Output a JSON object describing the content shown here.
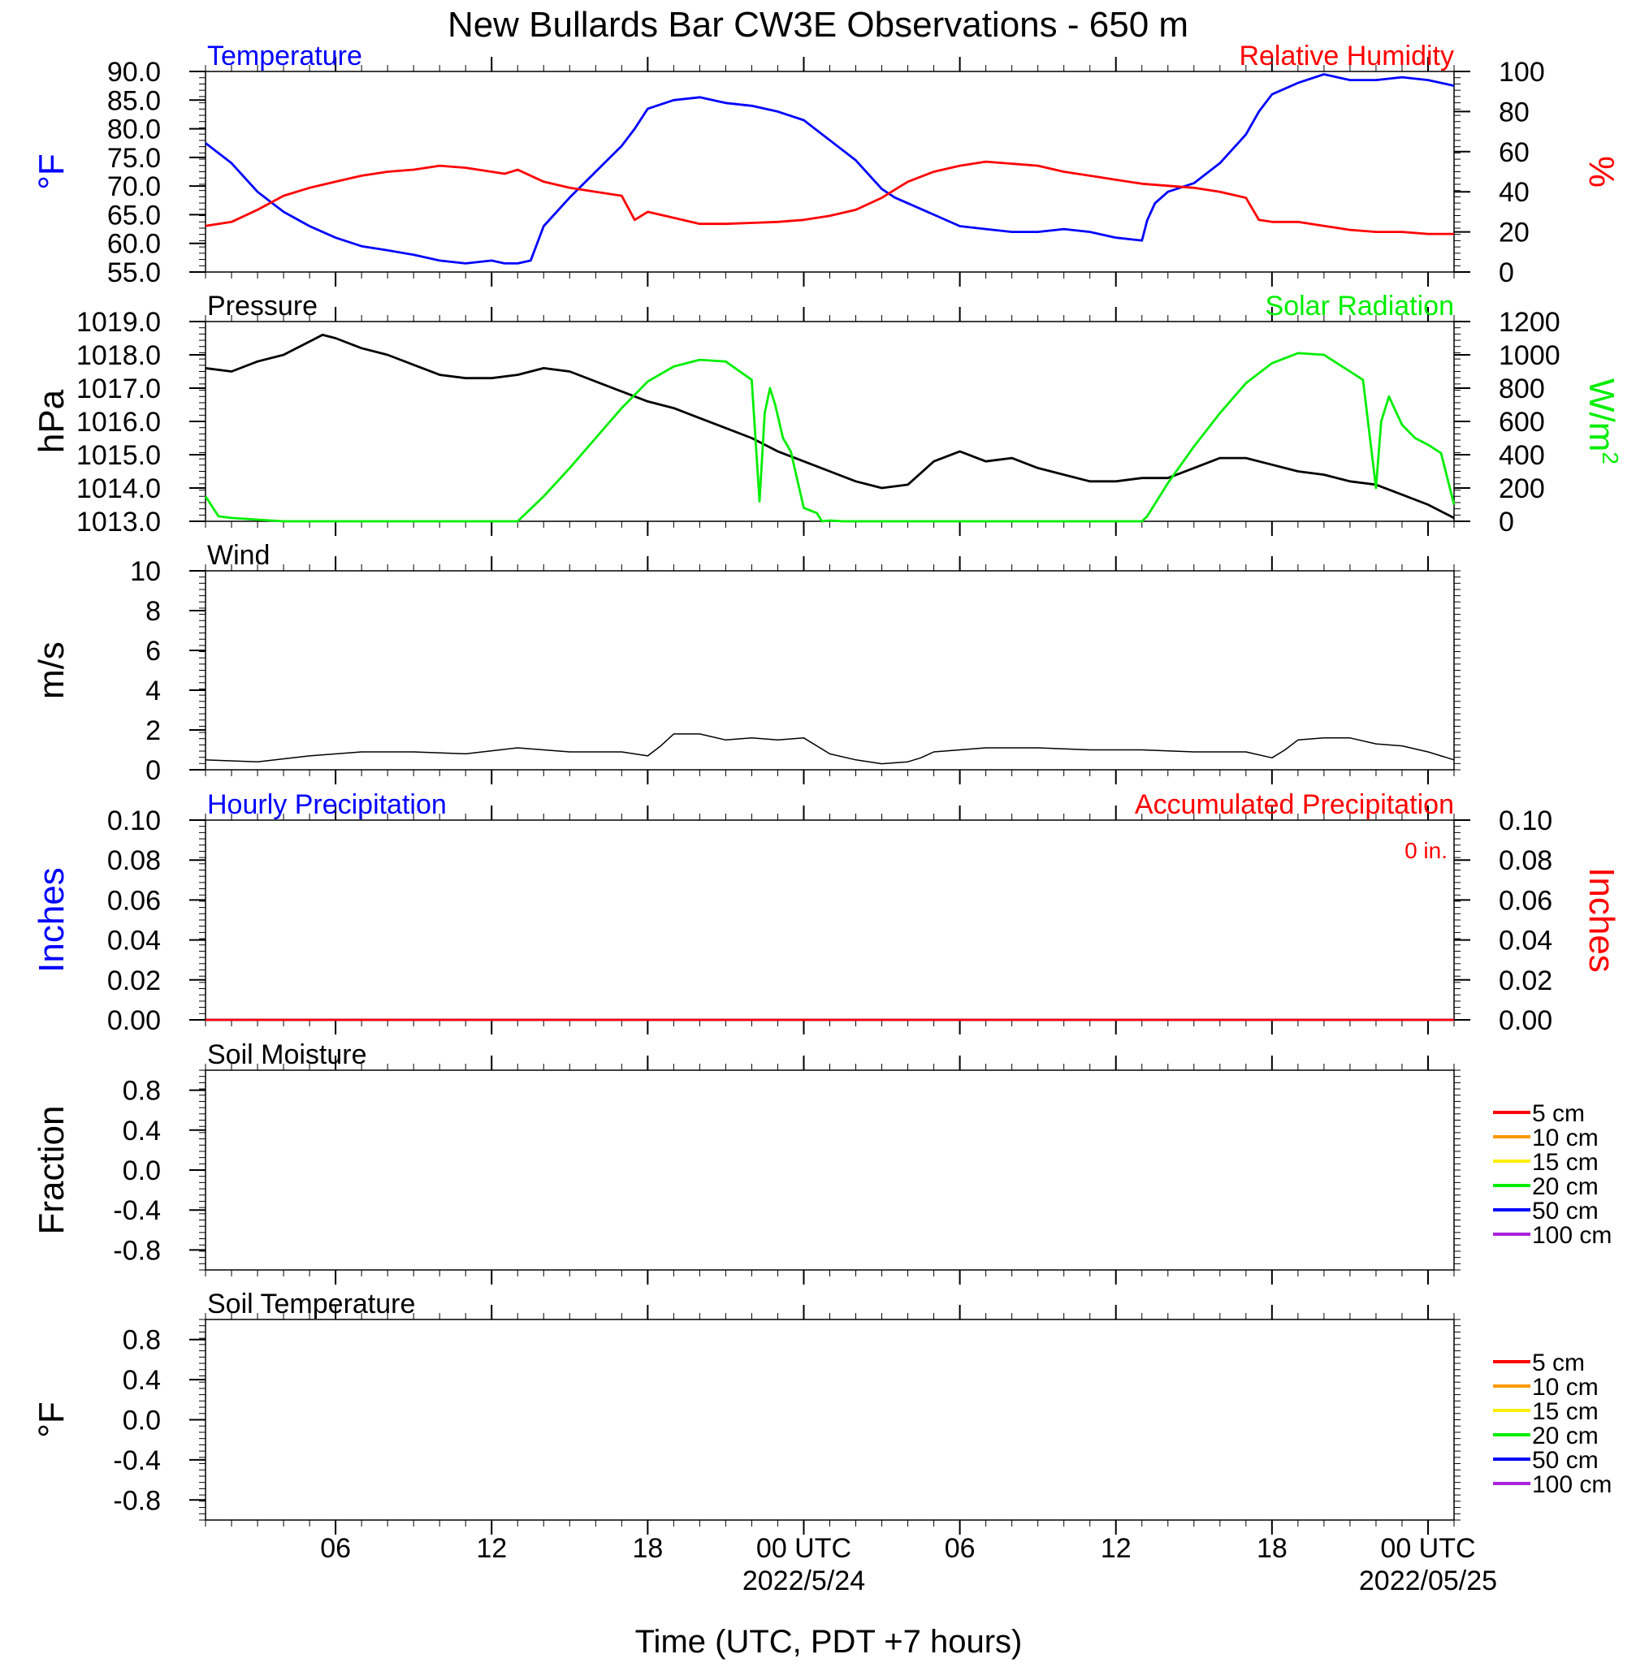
{
  "title": "New Bullards Bar CW3E Observations - 650 m",
  "xlabel": "Time (UTC, PDT +7 hours)",
  "x_axis": {
    "range_hours": [
      0,
      48
    ],
    "ticks": [
      {
        "hour": 5,
        "label": "06",
        "sub": ""
      },
      {
        "hour": 11,
        "label": "12",
        "sub": ""
      },
      {
        "hour": 17,
        "label": "18",
        "sub": ""
      },
      {
        "hour": 23,
        "label": "00 UTC",
        "sub": "2022/5/24"
      },
      {
        "hour": 29,
        "label": "06",
        "sub": ""
      },
      {
        "hour": 35,
        "label": "12",
        "sub": ""
      },
      {
        "hour": 41,
        "label": "18",
        "sub": ""
      },
      {
        "hour": 47,
        "label": "00 UTC",
        "sub": "2022/05/25"
      }
    ]
  },
  "colors": {
    "blue": "#0000ff",
    "red": "#ff0000",
    "green": "#00ee00",
    "black": "#000000",
    "orange": "#ff9900",
    "yellow": "#ffee00",
    "purple": "#aa22dd"
  },
  "chart_data": [
    {
      "type": "line",
      "panel": "temperature-humidity",
      "title_left": "Temperature",
      "title_right": "Relative Humidity",
      "ylabel_left": "°F",
      "ylabel_right": "%",
      "ylim_left": [
        55,
        90
      ],
      "ylim_right": [
        0,
        100
      ],
      "yticks_left": [
        "55.0",
        "60.0",
        "65.0",
        "70.0",
        "75.0",
        "80.0",
        "85.0",
        "90.0"
      ],
      "yticks_right": [
        "0",
        "20",
        "40",
        "60",
        "80",
        "100"
      ],
      "series": [
        {
          "name": "Temperature",
          "axis": "left",
          "color": "blue",
          "x": [
            0,
            1,
            2,
            3,
            4,
            5,
            6,
            7,
            8,
            9,
            10,
            11,
            11.5,
            12,
            12.5,
            13,
            14,
            15,
            16,
            16.5,
            17,
            18,
            19,
            20,
            21,
            22,
            23,
            24,
            25,
            26,
            26.5,
            27,
            28,
            29,
            30,
            31,
            32,
            33,
            34,
            35,
            36,
            36.2,
            36.5,
            37,
            38,
            39,
            40,
            40.5,
            41,
            42,
            43,
            44,
            45,
            46,
            47,
            48
          ],
          "y": [
            77.5,
            74,
            69,
            65.5,
            63,
            61,
            59.5,
            58.8,
            58,
            57,
            56.5,
            57,
            56.5,
            56.5,
            57,
            63,
            68,
            72.5,
            77,
            80,
            83.5,
            85,
            85.5,
            84.5,
            84,
            83,
            81.5,
            78,
            74.5,
            69.5,
            68,
            67,
            65,
            63,
            62.5,
            62,
            62,
            62.5,
            62,
            61,
            60.5,
            64,
            67,
            69,
            70.5,
            74,
            79,
            83,
            86,
            88,
            89.5,
            88.5,
            88.5,
            89,
            88.5,
            87.5
          ]
        },
        {
          "name": "Relative Humidity",
          "axis": "right",
          "color": "red",
          "x": [
            0,
            1,
            2,
            3,
            4,
            5,
            6,
            7,
            8,
            9,
            10,
            11,
            11.5,
            12,
            13,
            14,
            15,
            16,
            16.5,
            17,
            18,
            19,
            20,
            21,
            22,
            23,
            24,
            25,
            26,
            27,
            28,
            29,
            30,
            31,
            32,
            33,
            34,
            35,
            36,
            37,
            38,
            39,
            40,
            40.5,
            41,
            42,
            43,
            44,
            45,
            46,
            47,
            48
          ],
          "y": [
            23,
            25,
            31,
            38,
            42,
            45,
            48,
            50,
            51,
            53,
            52,
            50,
            49,
            51,
            45,
            42,
            40,
            38,
            26,
            30,
            27,
            24,
            24,
            24.5,
            25,
            26,
            28,
            31,
            37,
            45,
            50,
            53,
            55,
            54,
            53,
            50,
            48,
            46,
            44,
            43,
            42,
            40,
            37,
            26,
            25,
            25,
            23,
            21,
            20,
            20,
            19,
            19
          ]
        }
      ]
    },
    {
      "type": "line",
      "panel": "pressure-solar",
      "title_left": "Pressure",
      "title_right": "Solar Radiation",
      "ylabel_left": "hPa",
      "ylabel_right": "W/m2",
      "ylim_left": [
        1013,
        1019
      ],
      "ylim_right": [
        0,
        1200
      ],
      "yticks_left": [
        "1013.0",
        "1014.0",
        "1015.0",
        "1016.0",
        "1017.0",
        "1018.0",
        "1019.0"
      ],
      "yticks_right": [
        "0",
        "200",
        "400",
        "600",
        "800",
        "1000",
        "1200"
      ],
      "series": [
        {
          "name": "Pressure",
          "axis": "left",
          "color": "black",
          "x": [
            0,
            1,
            2,
            3,
            4,
            4.5,
            5,
            6,
            7,
            8,
            9,
            10,
            11,
            12,
            13,
            14,
            15,
            16,
            17,
            18,
            19,
            20,
            21,
            22,
            23,
            24,
            25,
            26,
            27,
            28,
            29,
            30,
            31,
            32,
            33,
            34,
            35,
            36,
            37,
            38,
            39,
            40,
            41,
            42,
            43,
            44,
            45,
            46,
            47,
            48
          ],
          "y": [
            1017.6,
            1017.5,
            1017.8,
            1018.0,
            1018.4,
            1018.6,
            1018.5,
            1018.2,
            1018.0,
            1017.7,
            1017.4,
            1017.3,
            1017.3,
            1017.4,
            1017.6,
            1017.5,
            1017.2,
            1016.9,
            1016.6,
            1016.4,
            1016.1,
            1015.8,
            1015.5,
            1015.1,
            1014.8,
            1014.5,
            1014.2,
            1014.0,
            1014.1,
            1014.8,
            1015.1,
            1014.8,
            1014.9,
            1014.6,
            1014.4,
            1014.2,
            1014.2,
            1014.3,
            1014.3,
            1014.6,
            1014.9,
            1014.9,
            1014.7,
            1014.5,
            1014.4,
            1014.2,
            1014.1,
            1013.8,
            1013.5,
            1013.1
          ]
        },
        {
          "name": "Solar Radiation",
          "axis": "right",
          "color": "green",
          "x": [
            0,
            0.5,
            1,
            2,
            3,
            4,
            5,
            6,
            7,
            8,
            9,
            10,
            11,
            12,
            12.2,
            13,
            14,
            15,
            16,
            17,
            18,
            19,
            20,
            21,
            21.3,
            21.5,
            21.7,
            21.9,
            22.2,
            22.5,
            23,
            23.5,
            23.7,
            24,
            24.5,
            25,
            26,
            27,
            28,
            29,
            30,
            31,
            32,
            33,
            34,
            35,
            36,
            36.2,
            37,
            38,
            39,
            40,
            41,
            42,
            43,
            44,
            44.5,
            45,
            45.2,
            45.5,
            45.7,
            46,
            46.5,
            47,
            47.5,
            48
          ],
          "y": [
            150,
            30,
            20,
            10,
            0,
            0,
            0,
            0,
            0,
            0,
            0,
            0,
            0,
            0,
            30,
            150,
            320,
            500,
            680,
            840,
            930,
            970,
            960,
            850,
            120,
            650,
            800,
            700,
            500,
            420,
            80,
            50,
            0,
            5,
            0,
            0,
            0,
            0,
            0,
            0,
            0,
            0,
            0,
            0,
            0,
            0,
            0,
            30,
            230,
            450,
            650,
            830,
            950,
            1010,
            1000,
            900,
            850,
            200,
            600,
            750,
            680,
            580,
            500,
            460,
            410,
            100
          ]
        }
      ]
    },
    {
      "type": "line",
      "panel": "wind",
      "title_left": "Wind",
      "ylabel_left": "m/s",
      "ylim_left": [
        0,
        10
      ],
      "yticks_left": [
        "0",
        "2",
        "4",
        "6",
        "8",
        "10"
      ],
      "series": [
        {
          "name": "Wind",
          "axis": "left",
          "color": "black",
          "x": [
            0,
            2,
            4,
            6,
            8,
            10,
            12,
            14,
            16,
            17,
            17.5,
            18,
            19,
            20,
            21,
            22,
            23,
            24,
            25,
            26,
            27,
            27.5,
            28,
            30,
            32,
            34,
            36,
            38,
            40,
            41,
            41.5,
            42,
            43,
            44,
            45,
            46,
            47,
            48
          ],
          "y": [
            0.5,
            0.4,
            0.7,
            0.9,
            0.9,
            0.8,
            1.1,
            0.9,
            0.9,
            0.7,
            1.2,
            1.8,
            1.8,
            1.5,
            1.6,
            1.5,
            1.6,
            0.8,
            0.5,
            0.3,
            0.4,
            0.6,
            0.9,
            1.1,
            1.1,
            1.0,
            1.0,
            0.9,
            0.9,
            0.6,
            1.0,
            1.5,
            1.6,
            1.6,
            1.3,
            1.2,
            0.9,
            0.5
          ]
        }
      ]
    },
    {
      "type": "line",
      "panel": "precipitation",
      "title_left": "Hourly Precipitation",
      "title_right": "Accumulated Precipitation",
      "annotation": "0 in.",
      "ylabel_left": "Inches",
      "ylabel_right": "Inches",
      "ylim_left": [
        0,
        0.1
      ],
      "ylim_right": [
        0,
        0.1
      ],
      "yticks_left": [
        "0.00",
        "0.02",
        "0.04",
        "0.06",
        "0.08",
        "0.10"
      ],
      "yticks_right": [
        "0.00",
        "0.02",
        "0.04",
        "0.06",
        "0.08",
        "0.10"
      ],
      "series": [
        {
          "name": "Hourly Precipitation",
          "axis": "left",
          "color": "blue",
          "x": [
            0,
            48
          ],
          "y": [
            0,
            0
          ]
        },
        {
          "name": "Accumulated Precipitation",
          "axis": "right",
          "color": "red",
          "x": [
            0,
            48
          ],
          "y": [
            0,
            0
          ]
        }
      ]
    },
    {
      "type": "line",
      "panel": "soil-moisture",
      "title_left": "Soil Moisture",
      "ylabel_left": "Fraction",
      "ylim_left": [
        -1,
        1
      ],
      "yticks_left": [
        "-0.8",
        "-0.4",
        "0.0",
        "0.4",
        "0.8"
      ],
      "legend": [
        {
          "name": "5 cm",
          "color": "red"
        },
        {
          "name": "10 cm",
          "color": "orange"
        },
        {
          "name": "15 cm",
          "color": "yellow"
        },
        {
          "name": "20 cm",
          "color": "green"
        },
        {
          "name": "50 cm",
          "color": "blue"
        },
        {
          "name": "100 cm",
          "color": "purple"
        }
      ],
      "series": []
    },
    {
      "type": "line",
      "panel": "soil-temperature",
      "title_left": "Soil Temperature",
      "ylabel_left": "°F",
      "ylim_left": [
        -1,
        1
      ],
      "yticks_left": [
        "-0.8",
        "-0.4",
        "0.0",
        "0.4",
        "0.8"
      ],
      "legend": [
        {
          "name": "5 cm",
          "color": "red"
        },
        {
          "name": "10 cm",
          "color": "orange"
        },
        {
          "name": "15 cm",
          "color": "yellow"
        },
        {
          "name": "20 cm",
          "color": "green"
        },
        {
          "name": "50 cm",
          "color": "blue"
        },
        {
          "name": "100 cm",
          "color": "purple"
        }
      ],
      "series": []
    }
  ]
}
